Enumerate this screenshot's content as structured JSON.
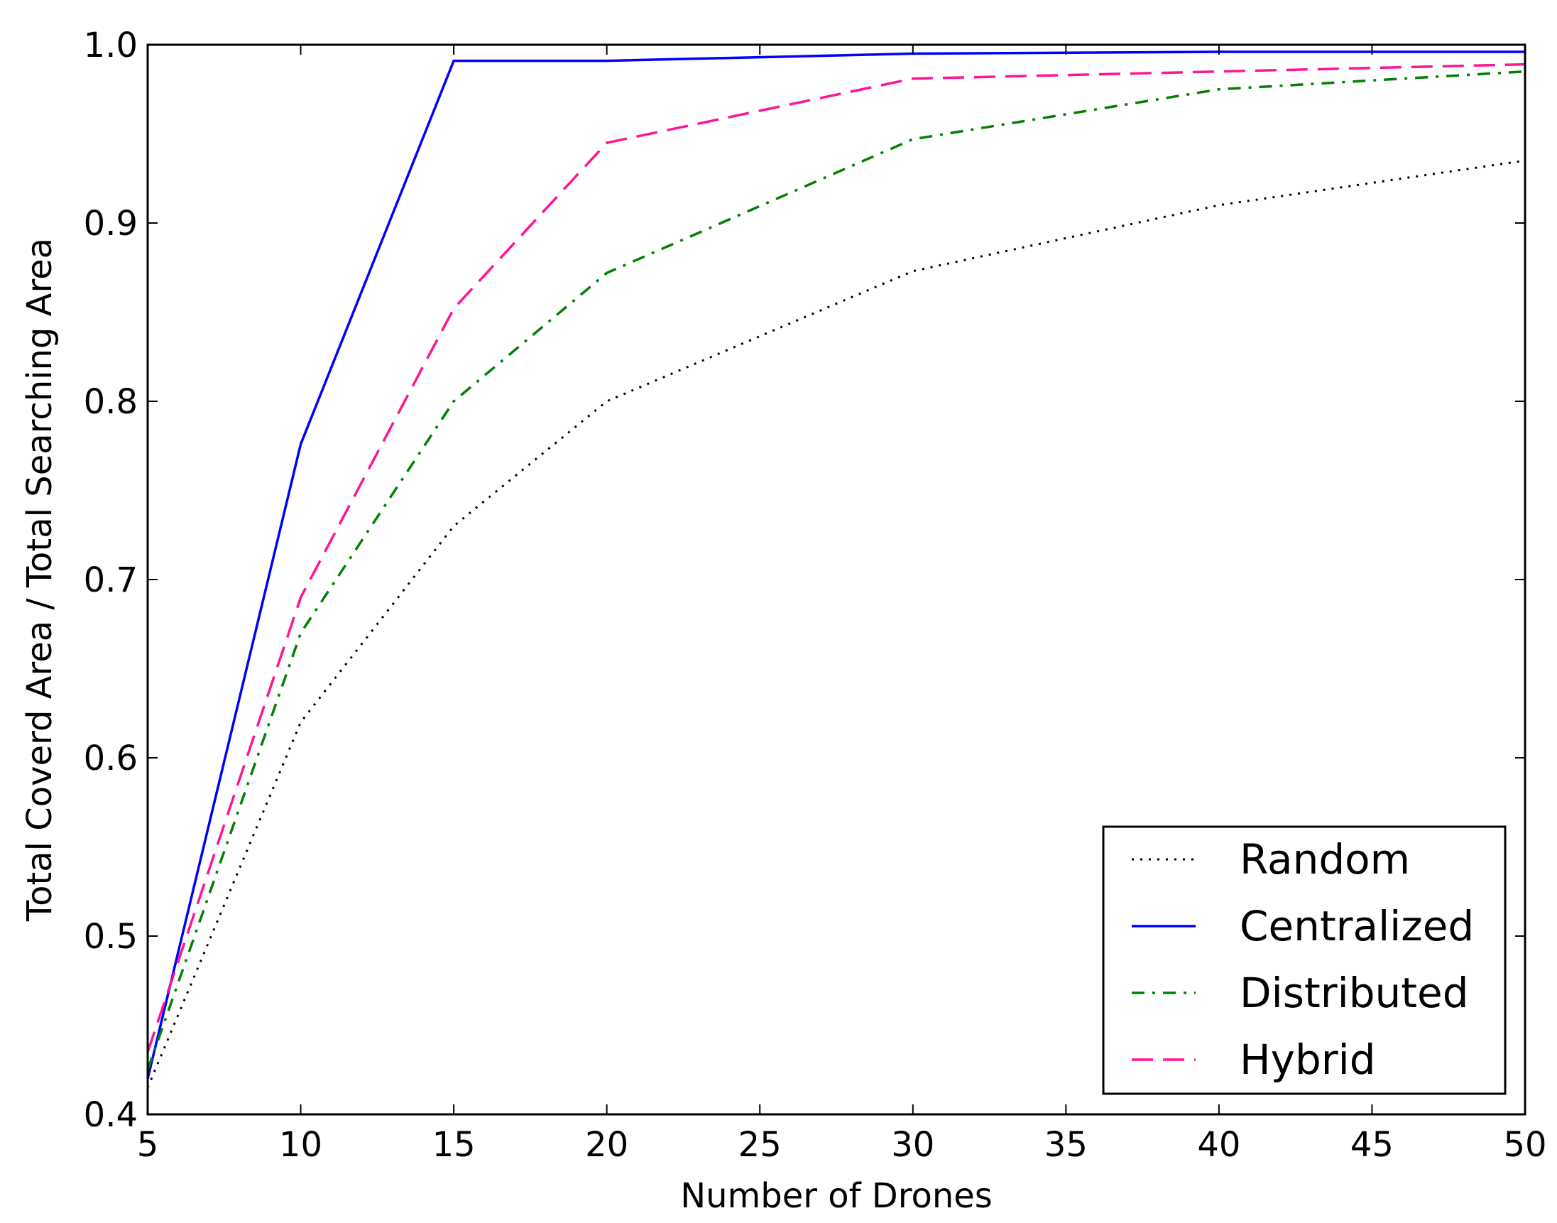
{
  "chart_data": {
    "type": "line",
    "title": "",
    "xlabel": "Number of Drones",
    "ylabel": "Total Coverd Area / Total Searching Area",
    "xlim": [
      5,
      50
    ],
    "ylim": [
      0.4,
      1.0
    ],
    "xticks": [
      5,
      10,
      15,
      20,
      25,
      30,
      35,
      40,
      45,
      50
    ],
    "yticks": [
      0.4,
      0.5,
      0.6,
      0.7,
      0.8,
      0.9,
      1.0
    ],
    "xtick_labels": [
      "5",
      "10",
      "15",
      "20",
      "25",
      "30",
      "35",
      "40",
      "45",
      "50"
    ],
    "ytick_labels": [
      "0.4",
      "0.5",
      "0.6",
      "0.7",
      "0.8",
      "0.9",
      "1.0"
    ],
    "grid": false,
    "legend_position": "bottom-right",
    "x": [
      5,
      10,
      15,
      20,
      30,
      40,
      50
    ],
    "series": [
      {
        "name": "Random",
        "color": "#000000",
        "style": "dotted",
        "values": [
          0.415,
          0.62,
          0.73,
          0.8,
          0.873,
          0.91,
          0.935
        ]
      },
      {
        "name": "Centralized",
        "color": "#0000ff",
        "style": "solid",
        "values": [
          0.42,
          0.776,
          0.991,
          0.991,
          0.995,
          0.996,
          0.996
        ]
      },
      {
        "name": "Distributed",
        "color": "#008000",
        "style": "dashdot",
        "values": [
          0.425,
          0.67,
          0.8,
          0.872,
          0.947,
          0.975,
          0.985
        ]
      },
      {
        "name": "Hybrid",
        "color": "#ff1493",
        "style": "dashed",
        "values": [
          0.435,
          0.69,
          0.852,
          0.945,
          0.981,
          0.985,
          0.989
        ]
      }
    ]
  }
}
